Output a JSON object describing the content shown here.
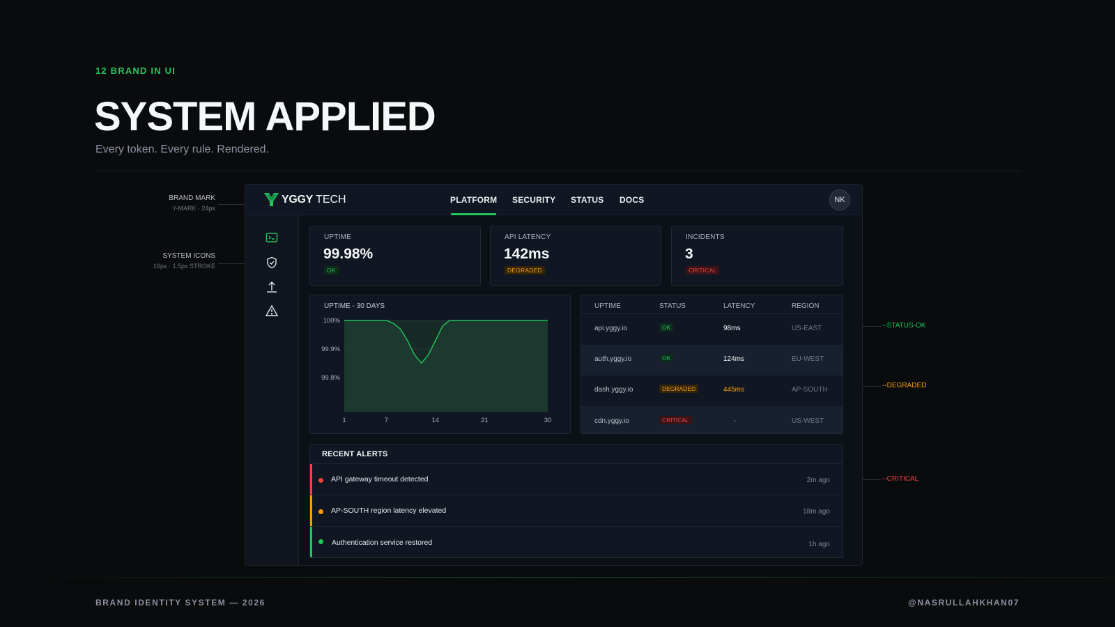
{
  "header": {
    "eyebrow": "12 BRAND IN UI",
    "title": "SYSTEM APPLIED",
    "subtitle": "Every token. Every rule. Rendered."
  },
  "annotations_left": [
    {
      "title": "BRAND MARK",
      "detail": "Y-MARK · 24px"
    },
    {
      "title": "SYSTEM ICONS",
      "detail": "16px · 1.5px STROKE"
    }
  ],
  "annotations_right": [
    {
      "label": "--STATUS-OK",
      "color": "#22c55e"
    },
    {
      "label": "--DEGRADED",
      "color": "#f59e0b"
    },
    {
      "label": "--CRITICAL",
      "color": "#ef4444"
    }
  ],
  "app": {
    "brand_bold": "YGGY",
    "brand_light": "TECH",
    "brand_icon": "y-mark-icon",
    "nav": [
      "PLATFORM",
      "SECURITY",
      "STATUS",
      "DOCS"
    ],
    "active_nav": "PLATFORM",
    "avatar": "NK",
    "sidebar_icons": [
      "terminal-icon",
      "shield-check-icon",
      "upload-icon",
      "warning-icon"
    ],
    "kpis": [
      {
        "label": "UPTIME",
        "value": "99.98%",
        "badge": "OK",
        "status": "ok"
      },
      {
        "label": "API LATENCY",
        "value": "142ms",
        "badge": "DEGRADED",
        "status": "deg"
      },
      {
        "label": "INCIDENTS",
        "value": "3",
        "badge": "CRITICAL",
        "status": "crit"
      }
    ],
    "table": {
      "headers": [
        "UPTIME",
        "STATUS",
        "LATENCY",
        "REGION"
      ],
      "rows": [
        {
          "host": "api.yggy.io",
          "status": "OK",
          "status_key": "ok",
          "latency": "98ms",
          "region": "US-EAST"
        },
        {
          "host": "auth.yggy.io",
          "status": "OK",
          "status_key": "ok",
          "latency": "124ms",
          "region": "EU-WEST"
        },
        {
          "host": "dash.yggy.io",
          "status": "DEGRADED",
          "status_key": "deg",
          "latency": "445ms",
          "region": "AP-SOUTH"
        },
        {
          "host": "cdn.yggy.io",
          "status": "CRITICAL",
          "status_key": "crit",
          "latency": "-",
          "region": "US-WEST"
        }
      ]
    },
    "alerts": {
      "title": "RECENT ALERTS",
      "items": [
        {
          "message": "API gateway timeout detected",
          "time": "2m ago",
          "status": "crit"
        },
        {
          "message": "AP-SOUTH region latency elevated",
          "time": "18m ago",
          "status": "deg"
        },
        {
          "message": "Authentication service restored",
          "time": "1h ago",
          "status": "ok"
        }
      ]
    }
  },
  "colors": {
    "ok": "#22c55e",
    "deg": "#f59e0b",
    "crit": "#ef4444",
    "background": "#0a0b0d",
    "panel": "#111722"
  },
  "chart_data": {
    "type": "area",
    "title": "UPTIME - 30 DAYS",
    "x_ticks": [
      "1",
      "7",
      "14",
      "21",
      "30"
    ],
    "y_ticks": [
      "100%",
      "99.9%",
      "99.8%"
    ],
    "ylim": [
      99.68,
      100.0
    ],
    "xlim": [
      1,
      30
    ],
    "x": [
      1,
      2,
      3,
      4,
      5,
      6,
      7,
      8,
      9,
      10,
      11,
      12,
      13,
      14,
      15,
      16,
      17,
      18,
      30
    ],
    "values": [
      100,
      100,
      100,
      100,
      100,
      100,
      100,
      99.99,
      99.97,
      99.93,
      99.88,
      99.85,
      99.88,
      99.93,
      99.98,
      100,
      100,
      100,
      100
    ],
    "series_color": "#22c55e",
    "grid": true
  },
  "footer": {
    "left": "BRAND IDENTITY SYSTEM — 2026",
    "right": "@NASRULLAHKHAN07"
  }
}
